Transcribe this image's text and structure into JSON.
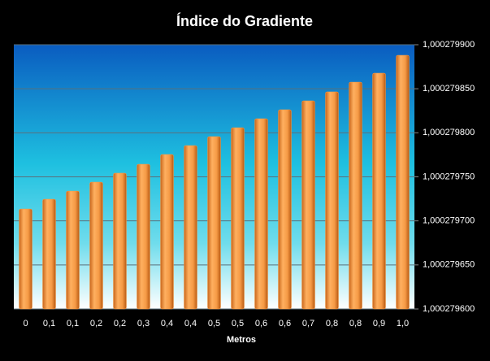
{
  "chart_data": {
    "type": "bar",
    "title": "Índice do Gradiente",
    "x_label": "Metros",
    "categories": [
      "0",
      "0,1",
      "0,1",
      "0,2",
      "0,2",
      "0,3",
      "0,4",
      "0,4",
      "0,5",
      "0,5",
      "0,6",
      "0,6",
      "0,7",
      "0,8",
      "0,8",
      "0,9",
      "1,0"
    ],
    "values": [
      1.0002797135,
      1.0002797246,
      1.0002797338,
      1.000279744,
      1.0002797542,
      1.0002797643,
      1.0002797754,
      1.0002797855,
      1.0002797957,
      1.0002798058,
      1.000279816,
      1.0002798262,
      1.0002798363,
      1.0002798465,
      1.0002798575,
      1.0002798677,
      1.000279888
    ],
    "color": "#f59a45",
    "ylim": [
      1.0002796,
      1.0002799
    ],
    "yticks": [
      {
        "value": 1.0002796,
        "label": "1,000279600"
      },
      {
        "value": 1.00027965,
        "label": "1,000279650"
      },
      {
        "value": 1.0002797,
        "label": "1,000279700"
      },
      {
        "value": 1.00027975,
        "label": "1,000279750"
      },
      {
        "value": 1.0002798,
        "label": "1,000279800"
      },
      {
        "value": 1.00027985,
        "label": "1,000279850"
      },
      {
        "value": 1.0002799,
        "label": "1,000279900"
      }
    ],
    "grid": true
  }
}
